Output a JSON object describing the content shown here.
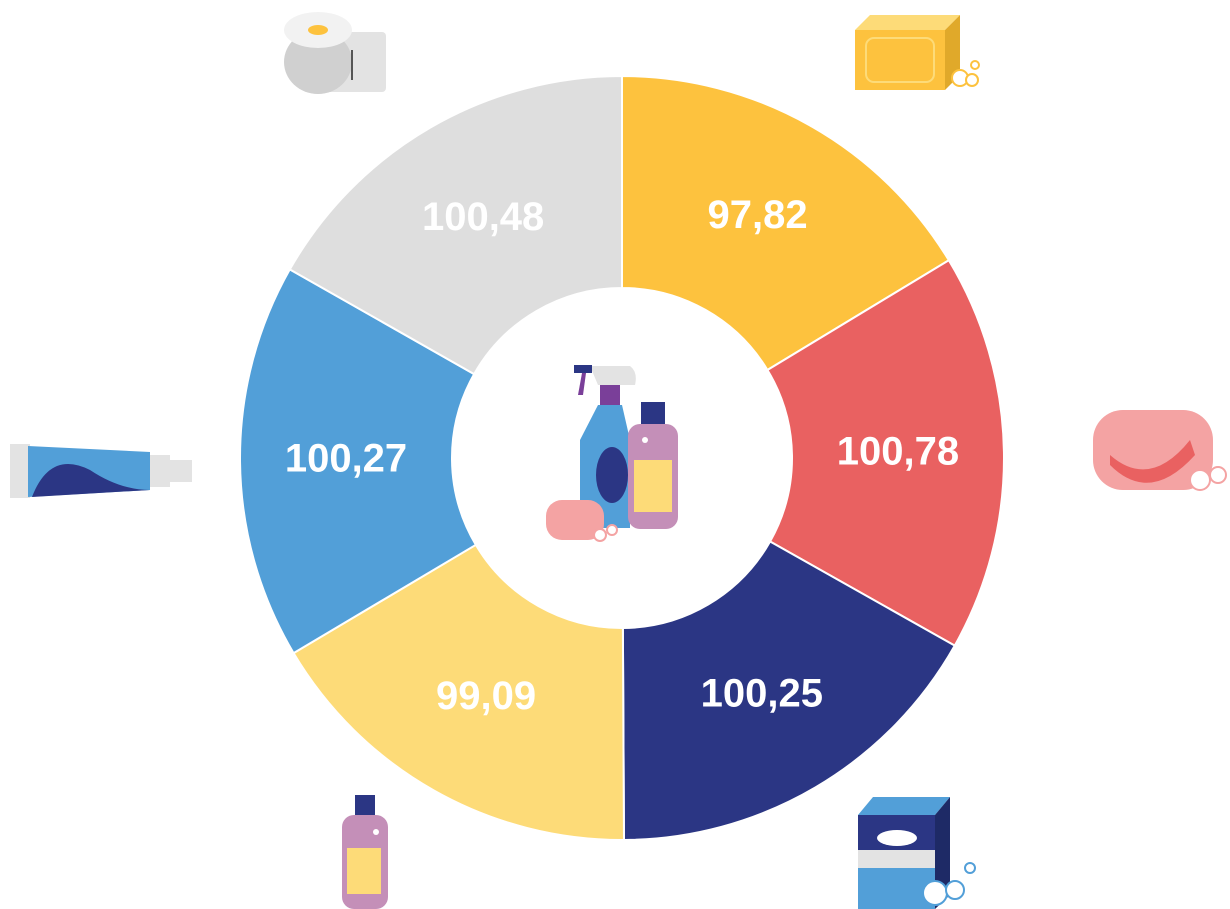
{
  "chart_data": {
    "type": "donut",
    "series": [
      {
        "values": [
          97.82,
          100.78,
          100.25,
          99.09,
          100.27,
          100.48
        ],
        "value_labels": [
          "97,82",
          "100,78",
          "100,25",
          "99,09",
          "100,27",
          "100,48"
        ],
        "colors": [
          "#fdc23e",
          "#e96161",
          "#2b3684",
          "#fddb78",
          "#529fd8",
          "#dedede"
        ]
      }
    ]
  }
}
